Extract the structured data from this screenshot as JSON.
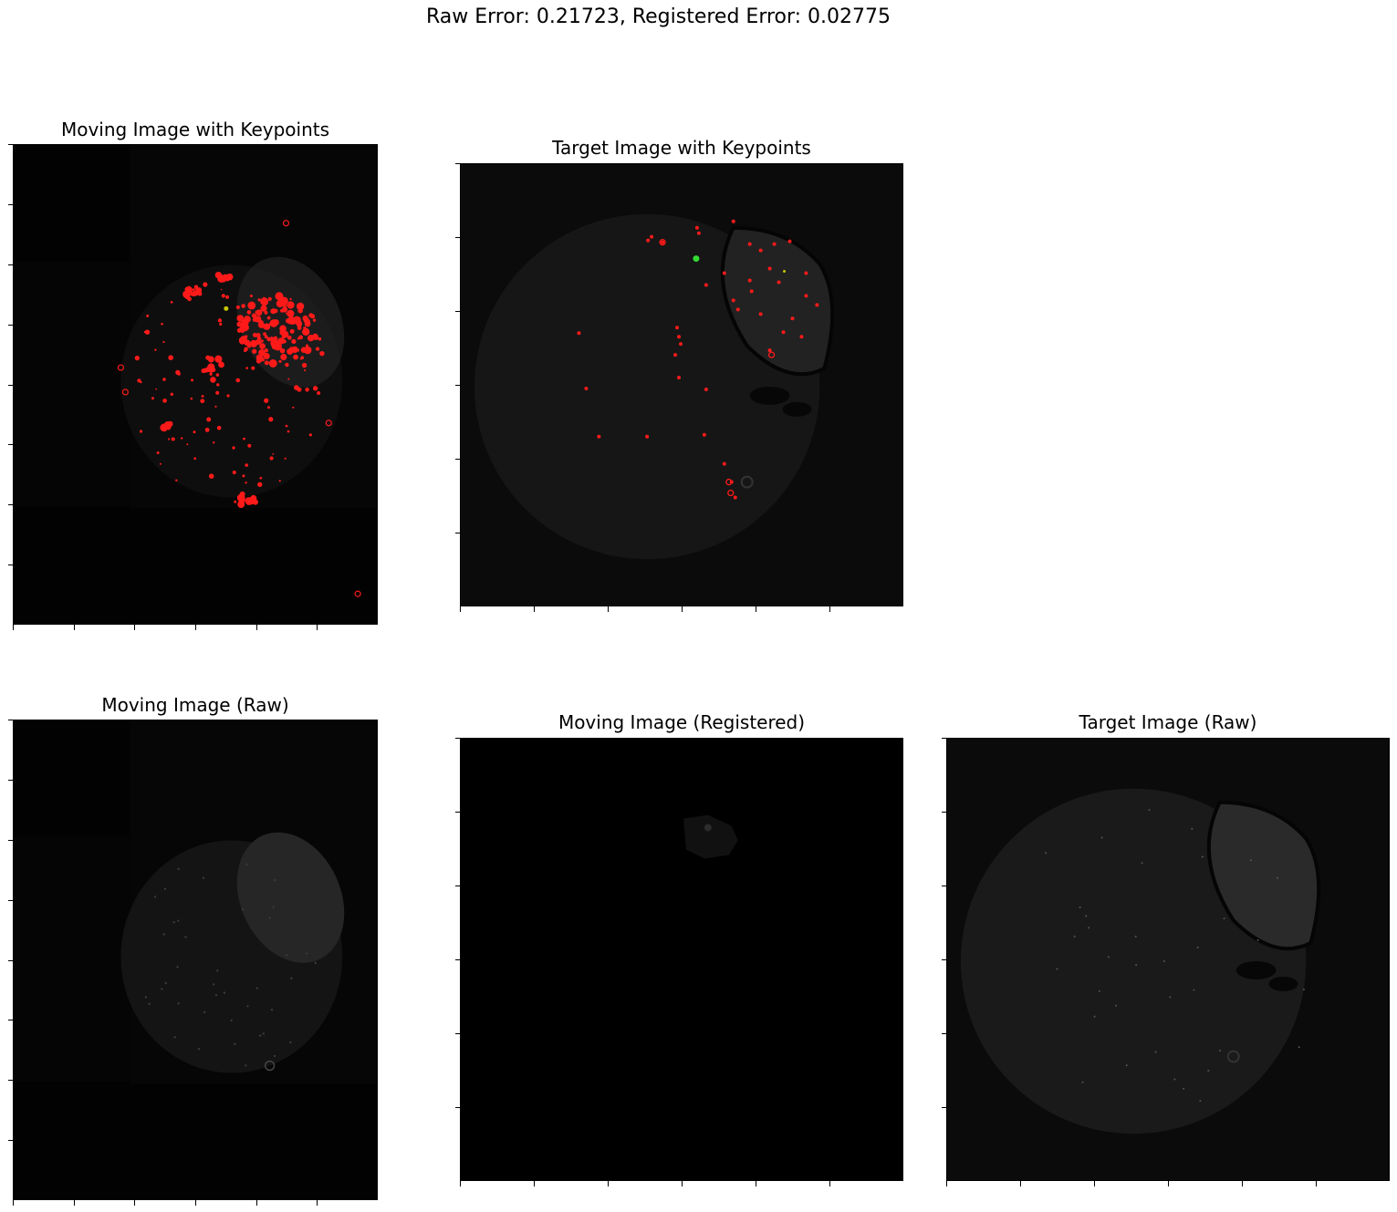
{
  "suptitle": "Raw Error: 0.21723, Registered Error: 0.02775",
  "panels": [
    {
      "title": "Moving Image with Keypoints",
      "content": "moving-keypoints"
    },
    {
      "title": "Target Image with Keypoints",
      "content": "target-keypoints"
    },
    {
      "title": "Moving Image (Raw)",
      "content": "moving-raw"
    },
    {
      "title": "Moving Image (Registered)",
      "content": "moving-registered"
    },
    {
      "title": "Target Image (Raw)",
      "content": "target-raw"
    }
  ],
  "colors": {
    "keypoint": "#ff1a1a",
    "keypoint_match": "#33dd33",
    "moving_background": "#020202",
    "target_background": "#0b0b0b",
    "registered_background": "#000000",
    "tissue": "#1c1c1c"
  }
}
